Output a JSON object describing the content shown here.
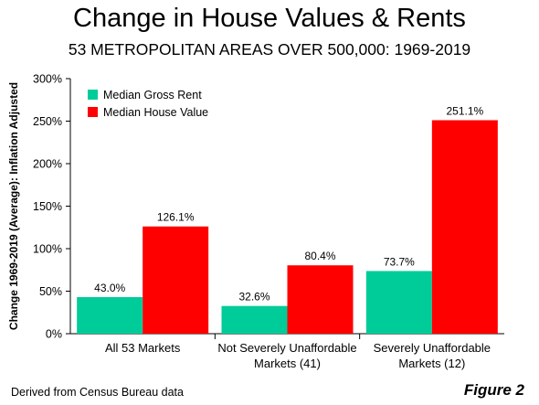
{
  "figure": {
    "title": "Change in House Values & Rents",
    "subtitle": "53 METROPOLITAN AREAS OVER 500,000: 1969-2019",
    "source": "Derived from Census Bureau data",
    "label": "Figure 2"
  },
  "chart_data": {
    "type": "bar",
    "categories": [
      [
        "All 53 Markets"
      ],
      [
        "Not Severely Unaffordable",
        "Markets (41)"
      ],
      [
        "Severely Unaffordable",
        "Markets (12)"
      ]
    ],
    "series": [
      {
        "name": "Median Gross Rent",
        "values": [
          43.0,
          32.6,
          73.7
        ],
        "labels": [
          "43.0%",
          "32.6%",
          "73.7%"
        ],
        "color": "#00CC99"
      },
      {
        "name": "Median House Value",
        "values": [
          126.1,
          80.4,
          251.1
        ],
        "labels": [
          "126.1%",
          "80.4%",
          "251.1%"
        ],
        "color": "#FF0000"
      }
    ],
    "ylabel": "Change 1969-2019 (Average): Inflation Adjusted",
    "ylim": [
      0,
      300
    ],
    "yticks": [
      0,
      50,
      100,
      150,
      200,
      250,
      300
    ],
    "ytick_labels": [
      "0%",
      "50%",
      "100%",
      "150%",
      "200%",
      "250%",
      "300%"
    ],
    "grid": false,
    "legend_position": "top-left"
  }
}
